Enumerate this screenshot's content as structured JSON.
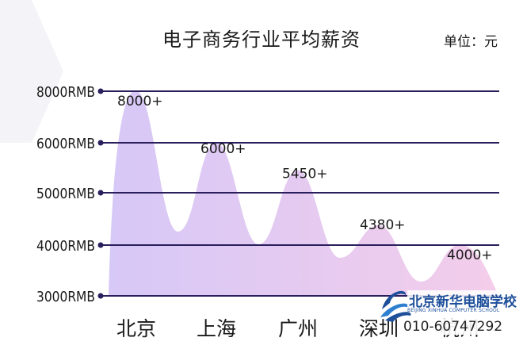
{
  "page": {
    "title": "电子商务行业平均薪资",
    "unit": "单位：元"
  },
  "chart_data": {
    "type": "area",
    "title": "电子商务行业平均薪资",
    "unit": "单位：元",
    "categories": [
      "北京",
      "上海",
      "广州",
      "深圳",
      "杭州"
    ],
    "values": [
      8000,
      6000,
      5450,
      4380,
      4000
    ],
    "value_labels": [
      "8000+",
      "6000+",
      "5450+",
      "4380+",
      "4000+"
    ],
    "y_ticks": [
      3000,
      4000,
      5000,
      6000,
      8000
    ],
    "y_tick_labels": [
      "3000RMB",
      "4000RMB",
      "5000RMB",
      "6000RMB",
      "8000RMB"
    ],
    "grid": true,
    "colors": {
      "grid": "#2a1f5c",
      "area_start": "#d9c6f5",
      "area_end": "#f2cdec"
    }
  },
  "logo": {
    "name": "北京新华电脑学校",
    "english": "BEIJING XINHUA COMPUTER SCHOOL",
    "phone": "010-60747292"
  }
}
